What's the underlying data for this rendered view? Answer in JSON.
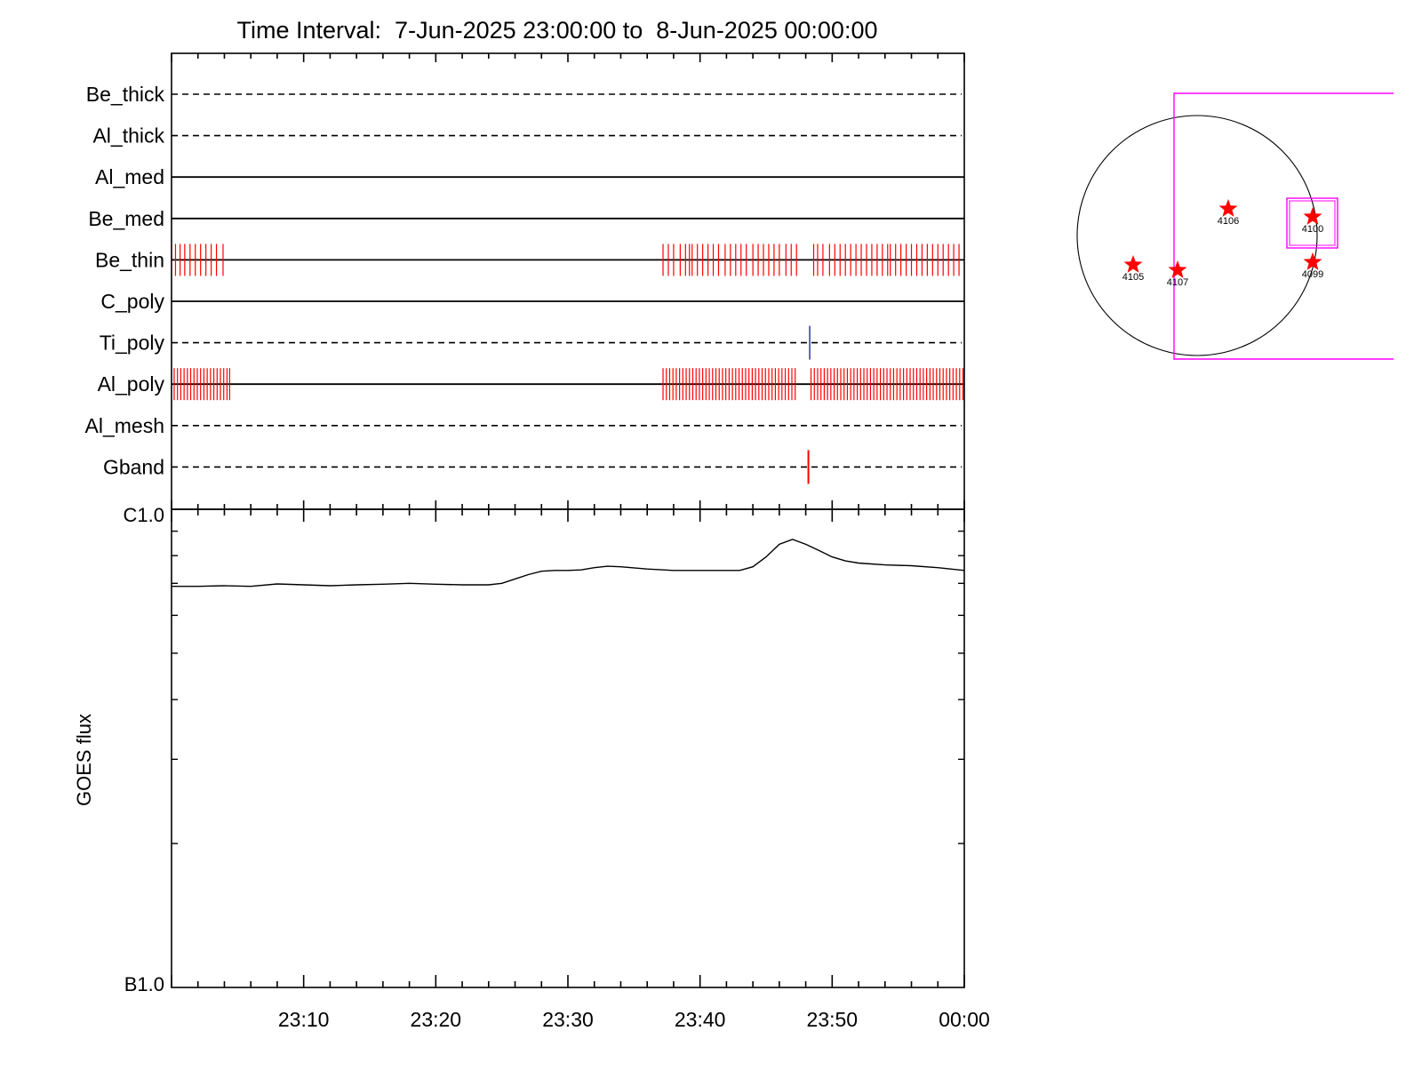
{
  "chart_data": [
    {
      "type": "timeline",
      "title": "Time Interval:  7-Jun-2025 23:00:00 to  8-Jun-2025 00:00:00",
      "x_range_minutes": [
        0,
        60
      ],
      "x_unit": "minutes after 23:00",
      "x_tick_labels": [
        "23:10",
        "23:20",
        "23:30",
        "23:40",
        "23:50",
        "00:00"
      ],
      "channels": [
        {
          "name": "Be_thick",
          "line": "dashed",
          "events": []
        },
        {
          "name": "Al_thick",
          "line": "dashed",
          "events": []
        },
        {
          "name": "Al_med",
          "line": "solid",
          "events": []
        },
        {
          "name": "Be_med",
          "line": "solid",
          "events": []
        },
        {
          "name": "Be_thin",
          "line": "solid",
          "event_color": "#ff0000",
          "events": [
            0.3,
            0.65,
            1.0,
            1.4,
            1.8,
            2.2,
            2.6,
            3.0,
            3.4,
            3.9,
            37.2,
            37.6,
            38.0,
            38.5,
            38.9,
            39.2,
            39.4,
            39.8,
            40.2,
            40.6,
            41.0,
            41.4,
            41.9,
            42.3,
            42.7,
            43.1,
            43.5,
            44.0,
            44.4,
            44.8,
            45.2,
            45.6,
            46.0,
            46.5,
            46.9,
            47.3,
            48.6,
            48.9,
            49.3,
            49.8,
            50.2,
            50.6,
            51.0,
            51.4,
            51.8,
            52.2,
            52.6,
            53.0,
            53.4,
            53.8,
            54.2,
            54.4,
            54.8,
            55.2,
            55.6,
            56.0,
            56.4,
            56.8,
            57.2,
            57.6,
            58.0,
            58.4,
            58.8,
            59.2,
            59.6
          ]
        },
        {
          "name": "C_poly",
          "line": "solid",
          "events": []
        },
        {
          "name": "Ti_poly",
          "line": "dashed",
          "event_color": "#000080",
          "events": [
            48.3
          ]
        },
        {
          "name": "Al_poly",
          "line": "solid",
          "event_color": "#ff0000",
          "events": [
            0.2,
            0.45,
            0.7,
            0.95,
            1.2,
            1.45,
            1.7,
            1.95,
            2.2,
            2.45,
            2.7,
            2.95,
            3.2,
            3.45,
            3.7,
            3.95,
            4.2,
            4.4,
            37.2,
            37.45,
            37.7,
            37.95,
            38.2,
            38.45,
            38.7,
            38.95,
            39.2,
            39.45,
            39.7,
            39.95,
            40.2,
            40.45,
            40.7,
            40.95,
            41.2,
            41.45,
            41.7,
            41.95,
            42.2,
            42.45,
            42.7,
            42.95,
            43.2,
            43.45,
            43.7,
            43.95,
            44.2,
            44.45,
            44.7,
            44.95,
            45.2,
            45.45,
            45.7,
            45.95,
            46.2,
            46.45,
            46.7,
            46.95,
            47.2,
            48.4,
            48.65,
            48.9,
            49.15,
            49.4,
            49.65,
            49.9,
            50.15,
            50.4,
            50.65,
            50.9,
            51.15,
            51.4,
            51.65,
            51.9,
            52.15,
            52.4,
            52.65,
            52.9,
            53.15,
            53.4,
            53.65,
            53.9,
            54.15,
            54.4,
            54.65,
            54.9,
            55.15,
            55.4,
            55.65,
            55.9,
            56.15,
            56.4,
            56.65,
            56.9,
            57.15,
            57.4,
            57.65,
            57.9,
            58.15,
            58.4,
            58.65,
            58.9,
            59.15,
            59.4,
            59.65,
            59.9
          ]
        },
        {
          "name": "Al_mesh",
          "line": "dashed",
          "events": []
        },
        {
          "name": "Gband",
          "line": "dashed",
          "event_color": "#ff0000",
          "events": [
            48.2
          ]
        }
      ]
    },
    {
      "type": "line",
      "ylabel": "GOES flux",
      "y_scale": "log",
      "y_tick_labels": [
        "C1.0",
        "B1.0"
      ],
      "ylim": [
        1e-07,
        1e-06
      ],
      "x_range_minutes": [
        0,
        60
      ],
      "series": [
        {
          "color": "#000000",
          "x": [
            0,
            2,
            4,
            6,
            8,
            10,
            12,
            14,
            16,
            18,
            20,
            22,
            24,
            25,
            26,
            27,
            28,
            29,
            30,
            31,
            32,
            33,
            34,
            36,
            38,
            40,
            42,
            43,
            44,
            45,
            46,
            47,
            48,
            49,
            50,
            51,
            52,
            54,
            56,
            58,
            60
          ],
          "y": [
            6.9e-07,
            6.9e-07,
            6.92e-07,
            6.9e-07,
            6.98e-07,
            6.95e-07,
            6.92e-07,
            6.95e-07,
            6.97e-07,
            7e-07,
            6.97e-07,
            6.95e-07,
            6.95e-07,
            7e-07,
            7.15e-07,
            7.3e-07,
            7.42e-07,
            7.45e-07,
            7.45e-07,
            7.47e-07,
            7.55e-07,
            7.6e-07,
            7.58e-07,
            7.5e-07,
            7.45e-07,
            7.45e-07,
            7.45e-07,
            7.45e-07,
            7.58e-07,
            7.95e-07,
            8.45e-07,
            8.65e-07,
            8.45e-07,
            8.2e-07,
            7.95e-07,
            7.8e-07,
            7.72e-07,
            7.65e-07,
            7.62e-07,
            7.55e-07,
            7.45e-07
          ]
        }
      ]
    },
    {
      "type": "scatter",
      "region_labels": [
        "4106",
        "4100",
        "4105",
        "4107",
        "4099"
      ],
      "marker_color": "#ff0000",
      "box_color": "#ff00ff"
    }
  ]
}
